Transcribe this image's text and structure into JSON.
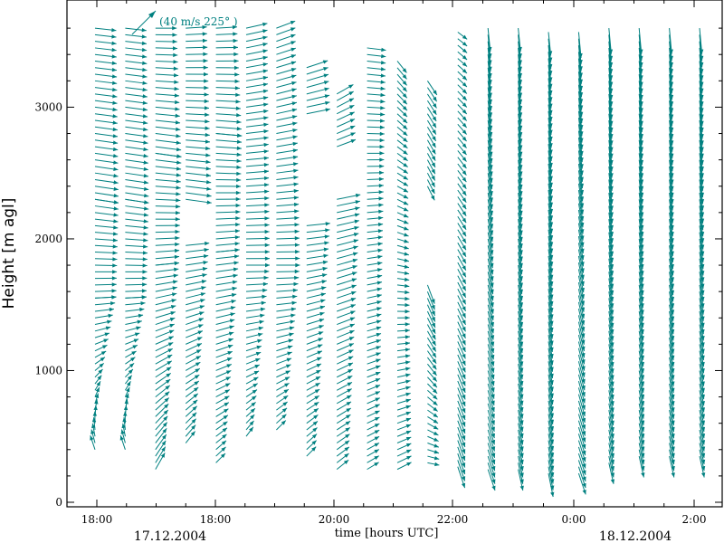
{
  "chart_data": {
    "type": "wind-profile-vectors",
    "xlabel": "time [hours UTC]",
    "ylabel": "Height [m agl]",
    "ylim": [
      0,
      3800
    ],
    "yticks": [
      0,
      1000,
      2000,
      3000
    ],
    "ytick_labels": [
      "0",
      "1000",
      "2000",
      "3000"
    ],
    "xtick_labels": [
      "18:00",
      "18:00",
      "20:00",
      "22:00",
      "0:00",
      "2:00"
    ],
    "date_labels": [
      "17.12.2004",
      "18.12.2004"
    ],
    "reference_vector": {
      "label": "(40 m/s 225° )",
      "speed": 40,
      "direction": 225
    },
    "vector_color": "#008080",
    "profiles": [
      {
        "segments": [
          {
            "z": [
              400,
              1550
            ],
            "u": [
              -2,
              9
            ],
            "v": [
              6,
              0.5
            ]
          },
          {
            "z": [
              1550,
              2300
            ],
            "u": [
              9,
              10
            ],
            "v": [
              0.5,
              -1.5
            ]
          },
          {
            "z": [
              2300,
              3600
            ],
            "u": [
              10,
              9
            ],
            "v": [
              -1.5,
              -1
            ]
          }
        ]
      },
      {
        "segments": [
          {
            "z": [
              400,
              1550
            ],
            "u": [
              -2,
              9
            ],
            "v": [
              6,
              0.5
            ]
          },
          {
            "z": [
              1550,
              2300
            ],
            "u": [
              9,
              10
            ],
            "v": [
              0.5,
              -1.5
            ]
          },
          {
            "z": [
              2300,
              3600
            ],
            "u": [
              10,
              9
            ],
            "v": [
              -1.5,
              -1
            ]
          }
        ]
      },
      {
        "segments": [
          {
            "z": [
              250,
              1800
            ],
            "u": [
              4,
              10
            ],
            "v": [
              7,
              1
            ]
          },
          {
            "z": [
              1800,
              2650
            ],
            "u": [
              10,
              11
            ],
            "v": [
              1,
              -1.5
            ]
          },
          {
            "z": [
              2650,
              3600
            ],
            "u": [
              11,
              9
            ],
            "v": [
              -1.5,
              0
            ]
          }
        ]
      },
      {
        "segments": [
          {
            "z": [
              450,
              1950
            ],
            "u": [
              4,
              10
            ],
            "v": [
              5,
              1
            ]
          },
          {
            "z": [
              2300,
              3600
            ],
            "u": [
              11,
              9
            ],
            "v": [
              -1.5,
              0.5
            ]
          }
        ]
      },
      {
        "segments": [
          {
            "z": [
              300,
              1900
            ],
            "u": [
              4,
              10
            ],
            "v": [
              4,
              1
            ]
          },
          {
            "z": [
              1900,
              2800
            ],
            "u": [
              10,
              11
            ],
            "v": [
              1,
              -1
            ]
          },
          {
            "z": [
              2800,
              3600
            ],
            "u": [
              11,
              9
            ],
            "v": [
              -1,
              0.5
            ]
          }
        ]
      },
      {
        "segments": [
          {
            "z": [
              500,
              1800
            ],
            "u": [
              3,
              10
            ],
            "v": [
              4,
              0
            ]
          },
          {
            "z": [
              1800,
              3600
            ],
            "u": [
              10,
              9
            ],
            "v": [
              0,
              2
            ]
          }
        ]
      },
      {
        "segments": [
          {
            "z": [
              550,
              1800
            ],
            "u": [
              4,
              10
            ],
            "v": [
              4,
              0
            ]
          },
          {
            "z": [
              1800,
              3600
            ],
            "u": [
              10,
              8
            ],
            "v": [
              0,
              3
            ]
          }
        ]
      },
      {
        "segments": [
          {
            "z": [
              350,
              2100
            ],
            "u": [
              4,
              10
            ],
            "v": [
              4,
              1
            ]
          },
          {
            "z": [
              2950,
              3300
            ],
            "u": [
              10,
              9
            ],
            "v": [
              2,
              3
            ]
          }
        ]
      },
      {
        "segments": [
          {
            "z": [
              250,
              2300
            ],
            "u": [
              5,
              10
            ],
            "v": [
              4,
              2
            ]
          },
          {
            "z": [
              2700,
              3100
            ],
            "u": [
              8,
              7
            ],
            "v": [
              3,
              4
            ]
          }
        ]
      },
      {
        "segments": [
          {
            "z": [
              250,
              3450
            ],
            "u": [
              5,
              8
            ],
            "v": [
              3,
              -1
            ]
          }
        ]
      },
      {
        "segments": [
          {
            "z": [
              250,
              3350
            ],
            "u": [
              6,
              4
            ],
            "v": [
              3,
              -5
            ]
          }
        ]
      },
      {
        "segments": [
          {
            "z": [
              300,
              1650
            ],
            "u": [
              5,
              3
            ],
            "v": [
              -1,
              -8
            ]
          },
          {
            "z": [
              2400,
              3200
            ],
            "u": [
              3,
              4
            ],
            "v": [
              -6,
              -6
            ]
          }
        ]
      },
      {
        "segments": [
          {
            "z": [
              270,
              3600
            ],
            "u": [
              3,
              4
            ],
            "v": [
              -9,
              -3
            ]
          }
        ]
      },
      {
        "segments": [
          {
            "z": [
              250,
              3600
            ],
            "u": [
              3,
              1
            ],
            "v": [
              -9,
              -10
            ]
          }
        ]
      },
      {
        "segments": [
          {
            "z": [
              250,
              3600
            ],
            "u": [
              2,
              1
            ],
            "v": [
              -9,
              -10
            ]
          }
        ]
      },
      {
        "segments": [
          {
            "z": [
              220,
              3600
            ],
            "u": [
              2,
              1
            ],
            "v": [
              -10,
              -10
            ]
          }
        ]
      },
      {
        "segments": [
          {
            "z": [
              220,
              3600
            ],
            "u": [
              3,
              1
            ],
            "v": [
              -9,
              -11
            ]
          }
        ]
      },
      {
        "segments": [
          {
            "z": [
              300,
              3600
            ],
            "u": [
              2,
              1
            ],
            "v": [
              -9,
              -11
            ]
          }
        ]
      },
      {
        "segments": [
          {
            "z": [
              350,
              3600
            ],
            "u": [
              2,
              1
            ],
            "v": [
              -9,
              -11
            ]
          }
        ]
      },
      {
        "segments": [
          {
            "z": [
              350,
              3600
            ],
            "u": [
              2,
              1
            ],
            "v": [
              -9,
              -11
            ]
          }
        ]
      },
      {
        "segments": [
          {
            "z": [
              350,
              3600
            ],
            "u": [
              2,
              1
            ],
            "v": [
              -9,
              -11
            ]
          }
        ]
      }
    ]
  }
}
